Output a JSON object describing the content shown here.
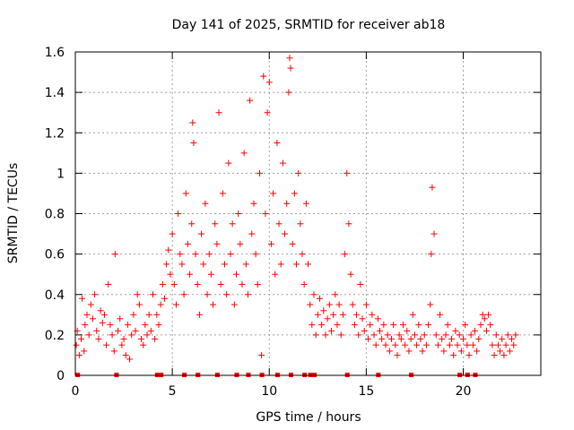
{
  "chart_data": {
    "type": "scatter",
    "title": "Day 141 of 2025, SRMTID for receiver ab18",
    "xlabel": "GPS time / hours",
    "ylabel": "SRMTID / TECUs",
    "xlim": [
      0,
      24
    ],
    "ylim": [
      0,
      1.6
    ],
    "xticks": [
      0,
      5,
      10,
      15,
      20
    ],
    "yticks": [
      0,
      0.2,
      0.4,
      0.6,
      0.8,
      1,
      1.2,
      1.4,
      1.6
    ],
    "ytick_labels": [
      "0",
      "0.2",
      "0.4",
      "0.6",
      "0.8",
      "1",
      "1.2",
      "1.4",
      "1.6"
    ],
    "grid": true,
    "marker": "+",
    "color": "#ff0000",
    "series": [
      {
        "name": "SRMTID",
        "points": [
          [
            0.05,
            0.15
          ],
          [
            0.1,
            0.22
          ],
          [
            0.2,
            0.1
          ],
          [
            0.3,
            0.18
          ],
          [
            0.35,
            0.38
          ],
          [
            0.45,
            0.12
          ],
          [
            0.5,
            0.25
          ],
          [
            0.6,
            0.3
          ],
          [
            0.7,
            0.2
          ],
          [
            0.8,
            0.35
          ],
          [
            0.9,
            0.28
          ],
          [
            1.0,
            0.4
          ],
          [
            1.1,
            0.22
          ],
          [
            1.2,
            0.18
          ],
          [
            1.3,
            0.32
          ],
          [
            1.4,
            0.26
          ],
          [
            1.5,
            0.3
          ],
          [
            1.6,
            0.15
          ],
          [
            1.7,
            0.45
          ],
          [
            1.8,
            0.25
          ],
          [
            1.9,
            0.2
          ],
          [
            2.0,
            0.12
          ],
          [
            2.05,
            0.6
          ],
          [
            2.2,
            0.22
          ],
          [
            2.3,
            0.28
          ],
          [
            2.4,
            0.15
          ],
          [
            2.5,
            0.18
          ],
          [
            2.6,
            0.1
          ],
          [
            2.7,
            0.25
          ],
          [
            2.8,
            0.08
          ],
          [
            2.9,
            0.2
          ],
          [
            3.0,
            0.3
          ],
          [
            3.1,
            0.22
          ],
          [
            3.2,
            0.4
          ],
          [
            3.3,
            0.35
          ],
          [
            3.4,
            0.18
          ],
          [
            3.5,
            0.15
          ],
          [
            3.6,
            0.25
          ],
          [
            3.7,
            0.2
          ],
          [
            3.8,
            0.3
          ],
          [
            3.9,
            0.22
          ],
          [
            4.0,
            0.4
          ],
          [
            4.1,
            0.18
          ],
          [
            4.2,
            0.3
          ],
          [
            4.3,
            0.25
          ],
          [
            4.4,
            0.35
          ],
          [
            4.5,
            0.45
          ],
          [
            4.6,
            0.38
          ],
          [
            4.7,
            0.55
          ],
          [
            4.8,
            0.62
          ],
          [
            4.9,
            0.5
          ],
          [
            5.0,
            0.7
          ],
          [
            5.1,
            0.45
          ],
          [
            5.2,
            0.35
          ],
          [
            5.3,
            0.8
          ],
          [
            5.4,
            0.6
          ],
          [
            5.5,
            0.55
          ],
          [
            5.6,
            0.4
          ],
          [
            5.7,
            0.9
          ],
          [
            5.8,
            0.65
          ],
          [
            5.9,
            0.5
          ],
          [
            6.0,
            0.75
          ],
          [
            6.05,
            1.25
          ],
          [
            6.1,
            1.15
          ],
          [
            6.2,
            0.6
          ],
          [
            6.3,
            0.45
          ],
          [
            6.4,
            0.3
          ],
          [
            6.5,
            0.7
          ],
          [
            6.6,
            0.55
          ],
          [
            6.7,
            0.85
          ],
          [
            6.8,
            0.4
          ],
          [
            6.9,
            0.6
          ],
          [
            7.0,
            0.5
          ],
          [
            7.1,
            0.35
          ],
          [
            7.2,
            0.75
          ],
          [
            7.3,
            0.65
          ],
          [
            7.4,
            1.3
          ],
          [
            7.5,
            0.45
          ],
          [
            7.6,
            0.9
          ],
          [
            7.7,
            0.55
          ],
          [
            7.8,
            0.4
          ],
          [
            7.9,
            1.05
          ],
          [
            8.0,
            0.6
          ],
          [
            8.1,
            0.75
          ],
          [
            8.2,
            0.35
          ],
          [
            8.3,
            0.5
          ],
          [
            8.4,
            0.8
          ],
          [
            8.5,
            0.65
          ],
          [
            8.6,
            0.45
          ],
          [
            8.7,
            1.1
          ],
          [
            8.8,
            0.55
          ],
          [
            8.9,
            0.4
          ],
          [
            9.0,
            1.36
          ],
          [
            9.1,
            0.7
          ],
          [
            9.2,
            0.85
          ],
          [
            9.3,
            0.6
          ],
          [
            9.4,
            0.45
          ],
          [
            9.5,
            1.0
          ],
          [
            9.6,
            0.1
          ],
          [
            9.7,
            1.48
          ],
          [
            9.8,
            0.8
          ],
          [
            9.9,
            1.3
          ],
          [
            10.0,
            1.45
          ],
          [
            10.1,
            0.65
          ],
          [
            10.2,
            0.9
          ],
          [
            10.3,
            0.5
          ],
          [
            10.4,
            1.15
          ],
          [
            10.5,
            0.75
          ],
          [
            10.6,
            0.55
          ],
          [
            10.7,
            1.05
          ],
          [
            10.8,
            0.7
          ],
          [
            10.9,
            0.85
          ],
          [
            11.0,
            1.4
          ],
          [
            11.05,
            1.57
          ],
          [
            11.1,
            1.52
          ],
          [
            11.2,
            0.65
          ],
          [
            11.3,
            0.9
          ],
          [
            11.4,
            0.55
          ],
          [
            11.5,
            1.0
          ],
          [
            11.6,
            0.75
          ],
          [
            11.7,
            0.6
          ],
          [
            11.8,
            0.45
          ],
          [
            11.9,
            0.85
          ],
          [
            12.0,
            0.55
          ],
          [
            12.1,
            0.35
          ],
          [
            12.2,
            0.25
          ],
          [
            12.3,
            0.4
          ],
          [
            12.4,
            0.2
          ],
          [
            12.5,
            0.3
          ],
          [
            12.6,
            0.38
          ],
          [
            12.7,
            0.25
          ],
          [
            12.8,
            0.32
          ],
          [
            12.9,
            0.2
          ],
          [
            13.0,
            0.28
          ],
          [
            13.1,
            0.35
          ],
          [
            13.2,
            0.22
          ],
          [
            13.3,
            0.3
          ],
          [
            13.4,
            0.4
          ],
          [
            13.5,
            0.25
          ],
          [
            13.6,
            0.35
          ],
          [
            13.7,
            0.2
          ],
          [
            13.8,
            0.3
          ],
          [
            13.9,
            0.6
          ],
          [
            14.0,
            1.0
          ],
          [
            14.1,
            0.75
          ],
          [
            14.2,
            0.5
          ],
          [
            14.3,
            0.35
          ],
          [
            14.4,
            0.25
          ],
          [
            14.5,
            0.3
          ],
          [
            14.6,
            0.2
          ],
          [
            14.7,
            0.45
          ],
          [
            14.8,
            0.28
          ],
          [
            14.9,
            0.22
          ],
          [
            15.0,
            0.35
          ],
          [
            15.1,
            0.18
          ],
          [
            15.2,
            0.25
          ],
          [
            15.3,
            0.3
          ],
          [
            15.4,
            0.2
          ],
          [
            15.5,
            0.15
          ],
          [
            15.6,
            0.28
          ],
          [
            15.7,
            0.22
          ],
          [
            15.8,
            0.18
          ],
          [
            15.9,
            0.25
          ],
          [
            16.0,
            0.15
          ],
          [
            16.1,
            0.2
          ],
          [
            16.2,
            0.12
          ],
          [
            16.3,
            0.18
          ],
          [
            16.4,
            0.25
          ],
          [
            16.5,
            0.15
          ],
          [
            16.6,
            0.1
          ],
          [
            16.7,
            0.2
          ],
          [
            16.8,
            0.18
          ],
          [
            16.9,
            0.25
          ],
          [
            17.0,
            0.15
          ],
          [
            17.1,
            0.22
          ],
          [
            17.2,
            0.12
          ],
          [
            17.3,
            0.18
          ],
          [
            17.4,
            0.3
          ],
          [
            17.5,
            0.2
          ],
          [
            17.6,
            0.15
          ],
          [
            17.7,
            0.25
          ],
          [
            17.8,
            0.18
          ],
          [
            17.9,
            0.12
          ],
          [
            18.0,
            0.2
          ],
          [
            18.1,
            0.15
          ],
          [
            18.2,
            0.25
          ],
          [
            18.3,
            0.35
          ],
          [
            18.35,
            0.6
          ],
          [
            18.4,
            0.93
          ],
          [
            18.5,
            0.7
          ],
          [
            18.6,
            0.2
          ],
          [
            18.7,
            0.15
          ],
          [
            18.8,
            0.3
          ],
          [
            18.9,
            0.18
          ],
          [
            19.0,
            0.12
          ],
          [
            19.1,
            0.2
          ],
          [
            19.2,
            0.25
          ],
          [
            19.3,
            0.15
          ],
          [
            19.4,
            0.18
          ],
          [
            19.5,
            0.1
          ],
          [
            19.6,
            0.22
          ],
          [
            19.7,
            0.15
          ],
          [
            19.8,
            0.2
          ],
          [
            19.9,
            0.12
          ],
          [
            20.0,
            0.18
          ],
          [
            20.1,
            0.25
          ],
          [
            20.2,
            0.15
          ],
          [
            20.3,
            0.1
          ],
          [
            20.4,
            0.2
          ],
          [
            20.5,
            0.15
          ],
          [
            20.6,
            0.22
          ],
          [
            20.7,
            0.12
          ],
          [
            20.8,
            0.18
          ],
          [
            20.9,
            0.25
          ],
          [
            21.0,
            0.3
          ],
          [
            21.1,
            0.28
          ],
          [
            21.2,
            0.22
          ],
          [
            21.3,
            0.3
          ],
          [
            21.4,
            0.25
          ],
          [
            21.5,
            0.15
          ],
          [
            21.6,
            0.1
          ],
          [
            21.7,
            0.2
          ],
          [
            21.8,
            0.15
          ],
          [
            21.9,
            0.12
          ],
          [
            22.0,
            0.18
          ],
          [
            22.1,
            0.1
          ],
          [
            22.2,
            0.15
          ],
          [
            22.3,
            0.2
          ],
          [
            22.4,
            0.12
          ],
          [
            22.5,
            0.18
          ],
          [
            22.6,
            0.15
          ],
          [
            22.7,
            0.2
          ]
        ]
      }
    ],
    "rug_x": [
      0.1,
      2.1,
      4.2,
      4.4,
      5.6,
      6.3,
      7.3,
      8.3,
      8.9,
      9.6,
      10.4,
      11.1,
      11.8,
      12.1,
      12.3,
      14.0,
      15.6,
      17.3,
      19.8,
      20.2,
      20.6
    ]
  }
}
